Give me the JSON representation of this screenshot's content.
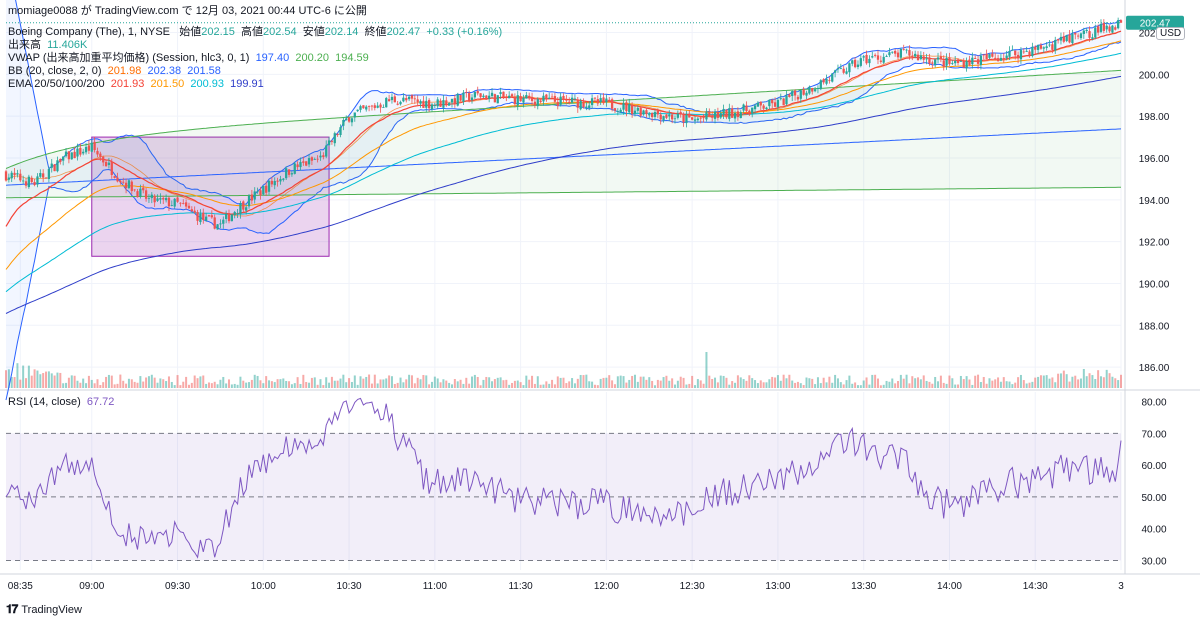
{
  "header": {
    "attribution": "momiage0088 が TradingView.com で 12月 03, 2021 00:44 UTC-6 に公開",
    "symbol": "Boeing Company (The), 1, NYSE",
    "open_label": "始値",
    "open": "202.15",
    "high_label": "高値",
    "high": "202.54",
    "low_label": "安値",
    "low": "202.14",
    "close_label": "終値",
    "close": "202.47",
    "change": "+0.33 (+0.16%)",
    "volume_label": "出来高",
    "volume": "11.406K",
    "vwap_label": "VWAP (出来高加重平均価格) (Session, hlc3, 0, 1)",
    "vwap_values": [
      "197.40",
      "200.20",
      "194.59"
    ],
    "bb_label": "BB (20, close, 2, 0)",
    "bb_values": [
      "201.98",
      "202.38",
      "201.58"
    ],
    "ema_label": "EMA 20/50/100/200",
    "ema_values": [
      "201.93",
      "201.50",
      "200.93",
      "199.91"
    ],
    "rsi_label": "RSI (14, close)",
    "rsi_value": "67.72"
  },
  "currency": "USD",
  "last_price_tag": "202.47",
  "logo_text": "TradingView",
  "colors": {
    "up": "#26a69a",
    "down": "#ef5350",
    "bb": "#2962ff",
    "vwap": "#4caf50",
    "ema20": "#f44336",
    "ema50": "#ff9800",
    "ema100": "#00bcd4",
    "ema200": "#2f3ec9",
    "rsi": "#7e57c2",
    "highlight": "#9c27b0"
  },
  "chart_data": [
    {
      "type": "candlestick",
      "title": "Boeing Company (The), 1, NYSE",
      "ylim": [
        185,
        202.6
      ],
      "y_ticks": [
        "186.00",
        "188.00",
        "190.00",
        "192.00",
        "194.00",
        "196.00",
        "198.00",
        "200.00",
        "202.00"
      ],
      "x_ticks": [
        "08:35",
        "09:00",
        "09:30",
        "10:00",
        "10:30",
        "11:00",
        "11:30",
        "12:00",
        "12:30",
        "13:00",
        "13:30",
        "14:00",
        "14:30",
        "3"
      ],
      "close_anchors": [
        [
          "08:30",
          195.2
        ],
        [
          "08:40",
          194.8
        ],
        [
          "08:50",
          196.0
        ],
        [
          "09:00",
          196.5
        ],
        [
          "09:10",
          195.0
        ],
        [
          "09:20",
          194.0
        ],
        [
          "09:30",
          193.8
        ],
        [
          "09:40",
          193.0
        ],
        [
          "09:45",
          192.8
        ],
        [
          "09:50",
          193.5
        ],
        [
          "10:00",
          194.5
        ],
        [
          "10:10",
          195.5
        ],
        [
          "10:20",
          196.0
        ],
        [
          "10:30",
          198.0
        ],
        [
          "10:45",
          198.8
        ],
        [
          "11:00",
          198.6
        ],
        [
          "11:15",
          199.0
        ],
        [
          "11:30",
          198.8
        ],
        [
          "11:45",
          198.7
        ],
        [
          "12:00",
          198.6
        ],
        [
          "12:15",
          198.2
        ],
        [
          "12:30",
          197.8
        ],
        [
          "12:45",
          198.2
        ],
        [
          "13:00",
          198.6
        ],
        [
          "13:15",
          199.6
        ],
        [
          "13:30",
          200.7
        ],
        [
          "13:45",
          201.0
        ],
        [
          "14:00",
          200.5
        ],
        [
          "14:15",
          200.8
        ],
        [
          "14:30",
          201.2
        ],
        [
          "14:45",
          201.8
        ],
        [
          "15:00",
          202.47
        ]
      ],
      "highlight_box": {
        "x_start": "09:00",
        "x_end": "10:23",
        "y_top": 197.0,
        "y_bottom": 191.3
      },
      "vwap": {
        "values": [
          "197.40",
          "200.20",
          "194.59"
        ]
      },
      "bb": {
        "values": [
          "201.98",
          "202.38",
          "201.58"
        ]
      },
      "ema": {
        "periods": [
          20,
          50,
          100,
          200
        ],
        "values": [
          "201.93",
          "201.50",
          "200.93",
          "199.91"
        ]
      }
    },
    {
      "type": "line",
      "title": "RSI (14, close)",
      "ylim": [
        27,
        83
      ],
      "y_ticks": [
        "30.00",
        "40.00",
        "50.00",
        "60.00",
        "70.00",
        "80.00"
      ],
      "levels": [
        30,
        50,
        70
      ],
      "last": 67.72
    }
  ]
}
